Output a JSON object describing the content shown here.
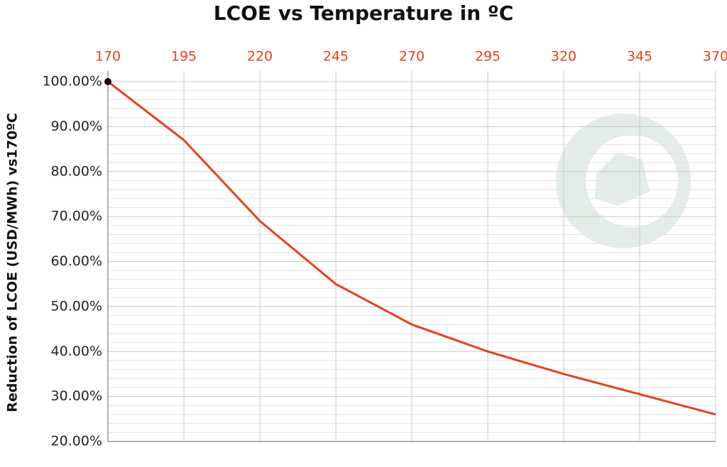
{
  "chart_data": {
    "type": "line",
    "title": "LCOE vs Temperature in ºC",
    "y_label": "Reduction of LCOE (USD/MWh) vs170ºC",
    "x": [
      170,
      195,
      220,
      245,
      270,
      295,
      320,
      345,
      370
    ],
    "series": [
      {
        "name": "LCOE",
        "color": "#e8401c",
        "values": [
          100,
          87,
          69,
          55,
          46,
          40,
          35,
          30.5,
          26
        ]
      }
    ],
    "xlim": [
      170,
      370
    ],
    "xticks": [
      170,
      195,
      220,
      245,
      270,
      295,
      320,
      345,
      370
    ],
    "ylim": [
      20,
      100
    ],
    "yticks": [
      {
        "value": 20,
        "label": "20.00%"
      },
      {
        "value": 30,
        "label": "30.00%"
      },
      {
        "value": 40,
        "label": "40.00%"
      },
      {
        "value": 50,
        "label": "50.00%"
      },
      {
        "value": 60,
        "label": "60.00%"
      },
      {
        "value": 70,
        "label": "70.00%"
      },
      {
        "value": 80,
        "label": "80.00%"
      },
      {
        "value": 90,
        "label": "90.00%"
      },
      {
        "value": 100,
        "label": "100.00%"
      }
    ],
    "grid": true
  }
}
